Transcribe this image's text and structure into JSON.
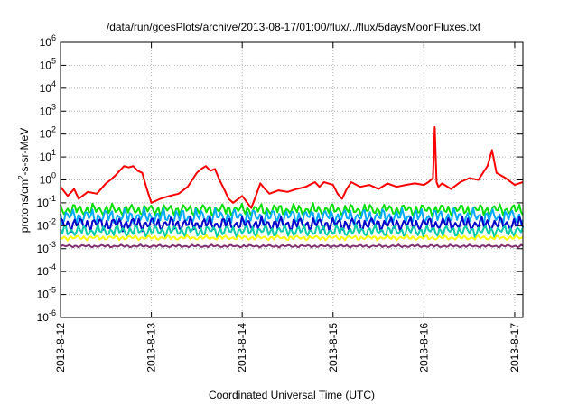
{
  "chart_data": {
    "type": "line",
    "title": "/data/run/goesPlots/archive/2013-08-17/01:00/flux/../flux/5daysMoonFluxes.txt",
    "xlabel": "Coordinated Universal Time (UTC)",
    "ylabel": {
      "prefix": "protons/cm",
      "sup": "2",
      "suffix": "-s-sr-MeV"
    },
    "x_range_days": [
      0,
      5.09
    ],
    "x_ticks": [
      {
        "day": 0,
        "label": "2013-8-12"
      },
      {
        "day": 1,
        "label": "2013-8-13"
      },
      {
        "day": 2,
        "label": "2013-8-14"
      },
      {
        "day": 3,
        "label": "2013-8-15"
      },
      {
        "day": 4,
        "label": "2013-8-16"
      },
      {
        "day": 5,
        "label": "2013-8-17"
      }
    ],
    "y_scale": "log",
    "ylim": [
      1e-06,
      1000000.0
    ],
    "y_ticks": [
      {
        "exp": -6,
        "base": "10",
        "sup": "-6"
      },
      {
        "exp": -5,
        "base": "10",
        "sup": "-5"
      },
      {
        "exp": -4,
        "base": "10",
        "sup": "-4"
      },
      {
        "exp": -3,
        "base": "10",
        "sup": "-3"
      },
      {
        "exp": -2,
        "base": "10",
        "sup": "-2"
      },
      {
        "exp": -1,
        "base": "10",
        "sup": "-1"
      },
      {
        "exp": 0,
        "base": "10",
        "sup": "0"
      },
      {
        "exp": 1,
        "base": "10",
        "sup": "1"
      },
      {
        "exp": 2,
        "base": "10",
        "sup": "2"
      },
      {
        "exp": 3,
        "base": "10",
        "sup": "3"
      },
      {
        "exp": 4,
        "base": "10",
        "sup": "4"
      },
      {
        "exp": 5,
        "base": "10",
        "sup": "5"
      },
      {
        "exp": 6,
        "base": "10",
        "sup": "6"
      }
    ],
    "grid": true,
    "series": [
      {
        "color": "#ff0000",
        "x": [
          0,
          0.08,
          0.15,
          0.2,
          0.3,
          0.4,
          0.5,
          0.55,
          0.6,
          0.65,
          0.7,
          0.75,
          0.8,
          0.85,
          0.9,
          0.95,
          1.0,
          1.1,
          1.2,
          1.3,
          1.4,
          1.45,
          1.5,
          1.55,
          1.6,
          1.65,
          1.7,
          1.75,
          1.8,
          1.85,
          1.9,
          2.0,
          2.1,
          2.15,
          2.2,
          2.25,
          2.3,
          2.4,
          2.5,
          2.6,
          2.7,
          2.8,
          2.85,
          2.9,
          3.0,
          3.05,
          3.1,
          3.15,
          3.2,
          3.3,
          3.4,
          3.5,
          3.6,
          3.7,
          3.8,
          3.9,
          4.0,
          4.05,
          4.1,
          4.12,
          4.14,
          4.16,
          4.2,
          4.3,
          4.4,
          4.5,
          4.6,
          4.65,
          4.7,
          4.75,
          4.8,
          4.9,
          5.0,
          5.09
        ],
        "y": [
          0.5,
          0.2,
          0.4,
          0.15,
          0.3,
          0.25,
          0.7,
          1.0,
          1.5,
          2.5,
          4.0,
          3.5,
          4.0,
          2.5,
          2.0,
          0.4,
          0.1,
          0.15,
          0.2,
          0.25,
          0.5,
          1.0,
          2.0,
          3.0,
          4.0,
          2.5,
          3.0,
          1.0,
          0.4,
          0.15,
          0.1,
          0.2,
          0.06,
          0.2,
          0.7,
          0.4,
          0.25,
          0.35,
          0.3,
          0.4,
          0.5,
          0.8,
          0.5,
          0.8,
          0.6,
          0.25,
          0.15,
          0.4,
          0.8,
          0.5,
          0.6,
          0.4,
          0.7,
          0.5,
          0.6,
          0.7,
          0.6,
          0.8,
          1.2,
          200,
          0.8,
          0.5,
          0.7,
          0.4,
          0.8,
          1.2,
          1.0,
          2.0,
          4.0,
          20,
          2.0,
          1.2,
          0.6,
          0.8
        ]
      },
      {
        "color": "#00e000",
        "pattern": "noisy",
        "center": 0.05,
        "amplitude": 0.3,
        "phase": 1.3
      },
      {
        "color": "#00aaff",
        "pattern": "noisy",
        "center": 0.025,
        "amplitude": 0.4,
        "phase": 2.1
      },
      {
        "color": "#0000cc",
        "pattern": "noisy",
        "center": 0.012,
        "amplitude": 0.35,
        "phase": 0.7
      },
      {
        "color": "#00ccaa",
        "pattern": "noisy",
        "center": 0.006,
        "amplitude": 0.3,
        "phase": 3.3
      },
      {
        "color": "#ffff00",
        "pattern": "noisy",
        "center": 0.003,
        "amplitude": 0.12,
        "phase": 4.1
      },
      {
        "color": "#803070",
        "pattern": "noisy",
        "center": 0.0013,
        "amplitude": 0.07,
        "phase": 5.7
      }
    ]
  }
}
